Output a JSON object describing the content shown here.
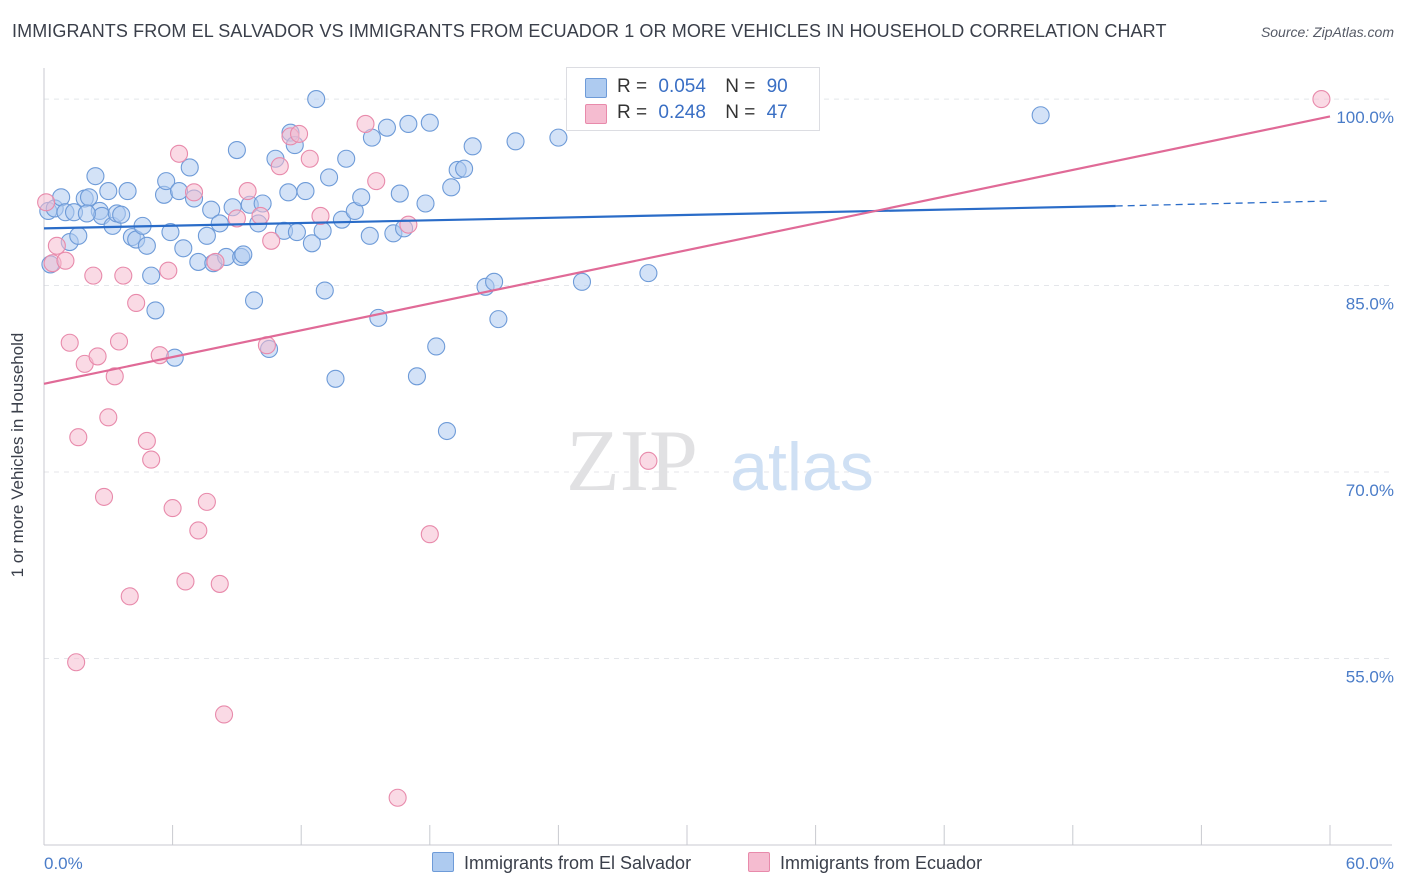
{
  "title": "IMMIGRANTS FROM EL SALVADOR VS IMMIGRANTS FROM ECUADOR 1 OR MORE VEHICLES IN HOUSEHOLD CORRELATION CHART",
  "source": "Source: ZipAtlas.com",
  "watermark": {
    "zip": "ZIP",
    "atlas": "atlas"
  },
  "legend": {
    "r_label": "R =",
    "n_label": "N =",
    "series": [
      {
        "r": "0.054",
        "n": "90"
      },
      {
        "r": "0.248",
        "n": "47"
      }
    ]
  },
  "bottom_legend": [
    "Immigrants from El Salvador",
    "Immigrants from Ecuador"
  ],
  "colors": {
    "blue_fill": "#aecbf0",
    "blue_stroke": "#6e9bd8",
    "blue_line": "#2a6cc8",
    "pink_fill": "#f5bcd0",
    "pink_stroke": "#e88aab",
    "pink_line": "#e06a97",
    "tick_label": "#4a7cc8",
    "grid": "#e4e6ea"
  },
  "chart_data": {
    "type": "scatter",
    "title": "IMMIGRANTS FROM EL SALVADOR VS IMMIGRANTS FROM ECUADOR 1 OR MORE VEHICLES IN HOUSEHOLD CORRELATION CHART",
    "xlabel": "",
    "ylabel": "1 or more Vehicles in Household",
    "xlim": [
      0,
      60
    ],
    "ylim": [
      40,
      102.5
    ],
    "x_tick_labels": [
      "0.0%",
      "60.0%"
    ],
    "y_ticks": [
      55,
      70,
      85,
      100
    ],
    "y_tick_labels": [
      "55.0%",
      "70.0%",
      "85.0%",
      "100.0%"
    ],
    "grid": true,
    "legend_position": "top-center",
    "series": [
      {
        "name": "Immigrants from El Salvador",
        "r": 0.054,
        "n": 90,
        "trend": {
          "x": [
            0,
            50
          ],
          "y": [
            89.6,
            91.4
          ],
          "dashed_to": [
            60,
            91.8
          ]
        },
        "points": [
          [
            0.2,
            91.0
          ],
          [
            0.3,
            86.7
          ],
          [
            0.5,
            91.2
          ],
          [
            0.8,
            92.1
          ],
          [
            1.0,
            90.9
          ],
          [
            1.2,
            88.5
          ],
          [
            1.4,
            90.9
          ],
          [
            1.6,
            89.0
          ],
          [
            1.9,
            92.0
          ],
          [
            2.1,
            92.1
          ],
          [
            2.4,
            93.8
          ],
          [
            2.6,
            91.0
          ],
          [
            2.7,
            90.6
          ],
          [
            3.0,
            92.6
          ],
          [
            3.2,
            89.8
          ],
          [
            3.4,
            90.8
          ],
          [
            3.6,
            90.7
          ],
          [
            3.9,
            92.6
          ],
          [
            4.1,
            88.9
          ],
          [
            4.3,
            88.7
          ],
          [
            4.6,
            89.8
          ],
          [
            4.8,
            88.2
          ],
          [
            5.0,
            85.8
          ],
          [
            5.2,
            83.0
          ],
          [
            5.6,
            92.3
          ],
          [
            5.7,
            93.4
          ],
          [
            5.9,
            89.3
          ],
          [
            6.1,
            79.2
          ],
          [
            6.3,
            92.6
          ],
          [
            6.5,
            88.0
          ],
          [
            6.8,
            94.5
          ],
          [
            7.0,
            92.0
          ],
          [
            7.2,
            86.9
          ],
          [
            7.6,
            89.0
          ],
          [
            7.8,
            91.1
          ],
          [
            7.9,
            86.8
          ],
          [
            8.2,
            90.0
          ],
          [
            8.5,
            87.3
          ],
          [
            8.8,
            91.3
          ],
          [
            9.0,
            95.9
          ],
          [
            9.2,
            87.3
          ],
          [
            9.3,
            87.5
          ],
          [
            9.6,
            91.5
          ],
          [
            9.8,
            83.8
          ],
          [
            10.0,
            90.0
          ],
          [
            10.2,
            91.6
          ],
          [
            10.5,
            79.9
          ],
          [
            10.8,
            95.2
          ],
          [
            11.2,
            89.4
          ],
          [
            11.4,
            92.5
          ],
          [
            11.5,
            97.3
          ],
          [
            11.7,
            96.3
          ],
          [
            11.8,
            89.3
          ],
          [
            12.2,
            92.6
          ],
          [
            12.5,
            88.4
          ],
          [
            12.7,
            100.0
          ],
          [
            13.0,
            89.4
          ],
          [
            13.1,
            84.6
          ],
          [
            13.3,
            93.7
          ],
          [
            13.6,
            77.5
          ],
          [
            13.9,
            90.3
          ],
          [
            14.1,
            95.2
          ],
          [
            14.5,
            91.0
          ],
          [
            14.8,
            92.1
          ],
          [
            15.2,
            89.0
          ],
          [
            15.3,
            96.9
          ],
          [
            15.6,
            82.4
          ],
          [
            16.0,
            97.7
          ],
          [
            16.3,
            89.2
          ],
          [
            16.6,
            92.4
          ],
          [
            16.8,
            89.6
          ],
          [
            17.0,
            98.0
          ],
          [
            17.4,
            77.7
          ],
          [
            17.8,
            91.6
          ],
          [
            18.0,
            98.1
          ],
          [
            18.3,
            80.1
          ],
          [
            18.8,
            73.3
          ],
          [
            19.0,
            92.9
          ],
          [
            19.3,
            94.3
          ],
          [
            19.6,
            94.4
          ],
          [
            20.0,
            96.2
          ],
          [
            20.6,
            84.9
          ],
          [
            21.0,
            85.3
          ],
          [
            21.2,
            82.3
          ],
          [
            22.0,
            96.6
          ],
          [
            25.1,
            85.3
          ],
          [
            24.0,
            96.9
          ],
          [
            28.2,
            86.0
          ],
          [
            46.5,
            98.7
          ],
          [
            2.0,
            90.8
          ]
        ]
      },
      {
        "name": "Immigrants from Ecuador",
        "r": 0.248,
        "n": 47,
        "trend": {
          "x": [
            0,
            60
          ],
          "y": [
            77.1,
            98.6
          ]
        },
        "points": [
          [
            0.1,
            91.7
          ],
          [
            0.4,
            86.8
          ],
          [
            0.6,
            88.2
          ],
          [
            1.0,
            87.0
          ],
          [
            1.2,
            80.4
          ],
          [
            1.5,
            54.7
          ],
          [
            1.6,
            72.8
          ],
          [
            1.9,
            78.7
          ],
          [
            2.3,
            85.8
          ],
          [
            2.5,
            79.3
          ],
          [
            2.8,
            68.0
          ],
          [
            3.0,
            74.4
          ],
          [
            3.3,
            77.7
          ],
          [
            3.5,
            80.5
          ],
          [
            3.7,
            85.8
          ],
          [
            4.0,
            60.0
          ],
          [
            4.3,
            83.6
          ],
          [
            4.8,
            72.5
          ],
          [
            5.0,
            71.0
          ],
          [
            5.4,
            79.4
          ],
          [
            5.8,
            86.2
          ],
          [
            6.0,
            67.1
          ],
          [
            6.3,
            95.6
          ],
          [
            6.6,
            61.2
          ],
          [
            7.0,
            92.5
          ],
          [
            7.2,
            65.3
          ],
          [
            7.6,
            67.6
          ],
          [
            8.0,
            86.9
          ],
          [
            8.2,
            61.0
          ],
          [
            8.4,
            50.5
          ],
          [
            9.0,
            90.4
          ],
          [
            9.5,
            92.6
          ],
          [
            10.1,
            90.6
          ],
          [
            10.4,
            80.2
          ],
          [
            10.6,
            88.6
          ],
          [
            11.0,
            94.6
          ],
          [
            11.5,
            97.0
          ],
          [
            11.9,
            97.2
          ],
          [
            12.4,
            95.2
          ],
          [
            12.9,
            90.6
          ],
          [
            15.0,
            98.0
          ],
          [
            15.5,
            93.4
          ],
          [
            16.5,
            43.8
          ],
          [
            17.0,
            89.9
          ],
          [
            18.0,
            65.0
          ],
          [
            28.2,
            70.9
          ],
          [
            59.6,
            100.0
          ]
        ]
      }
    ]
  }
}
